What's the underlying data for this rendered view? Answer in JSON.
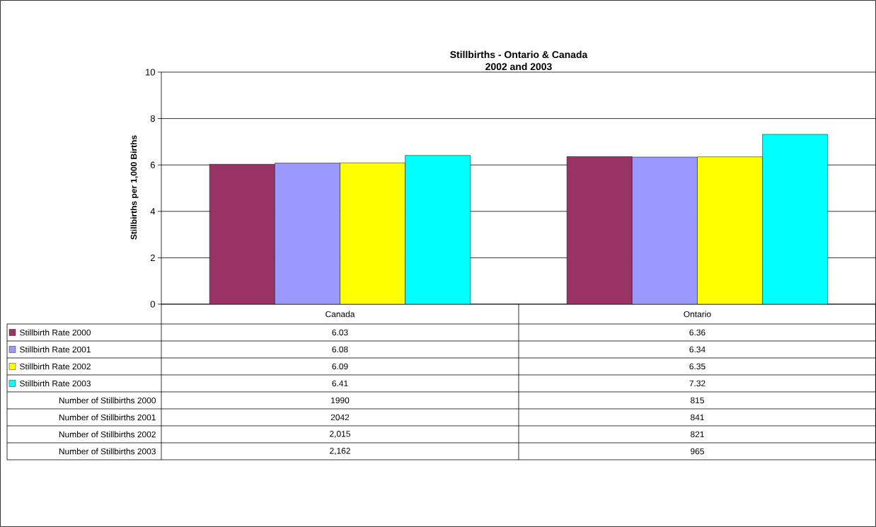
{
  "chart_data": {
    "type": "bar",
    "title": "Stillbirths - Ontario & Canada",
    "subtitle": "2002 and 2003",
    "ylabel": "Stillbirths per 1,000 Births",
    "categories": [
      "Canada",
      "Ontario"
    ],
    "series": [
      {
        "name": "Stillbirth Rate 2000",
        "color": "#993366",
        "values": [
          6.03,
          6.36
        ]
      },
      {
        "name": "Stillbirth Rate 2001",
        "color": "#9999ff",
        "values": [
          6.08,
          6.34
        ]
      },
      {
        "name": "Stillbirth Rate 2002",
        "color": "#ffff00",
        "values": [
          6.09,
          6.35
        ]
      },
      {
        "name": "Stillbirth Rate 2003",
        "color": "#00ffff",
        "values": [
          6.41,
          7.32
        ]
      }
    ],
    "ylim": [
      0,
      10
    ],
    "yticks": [
      0,
      2,
      4,
      6,
      8,
      10
    ],
    "grid": "y",
    "legend": "bottom left",
    "data_labels": true,
    "annotations": [
      "Number of Stillbirths 2000",
      "1990",
      "815",
      "Number of Stillbirths 2001",
      "2042",
      "841",
      "Number of Stillbirths 2002",
      "2,015",
      "821",
      "Number of Stillbirths 2003",
      "2,162",
      "965"
    ]
  }
}
